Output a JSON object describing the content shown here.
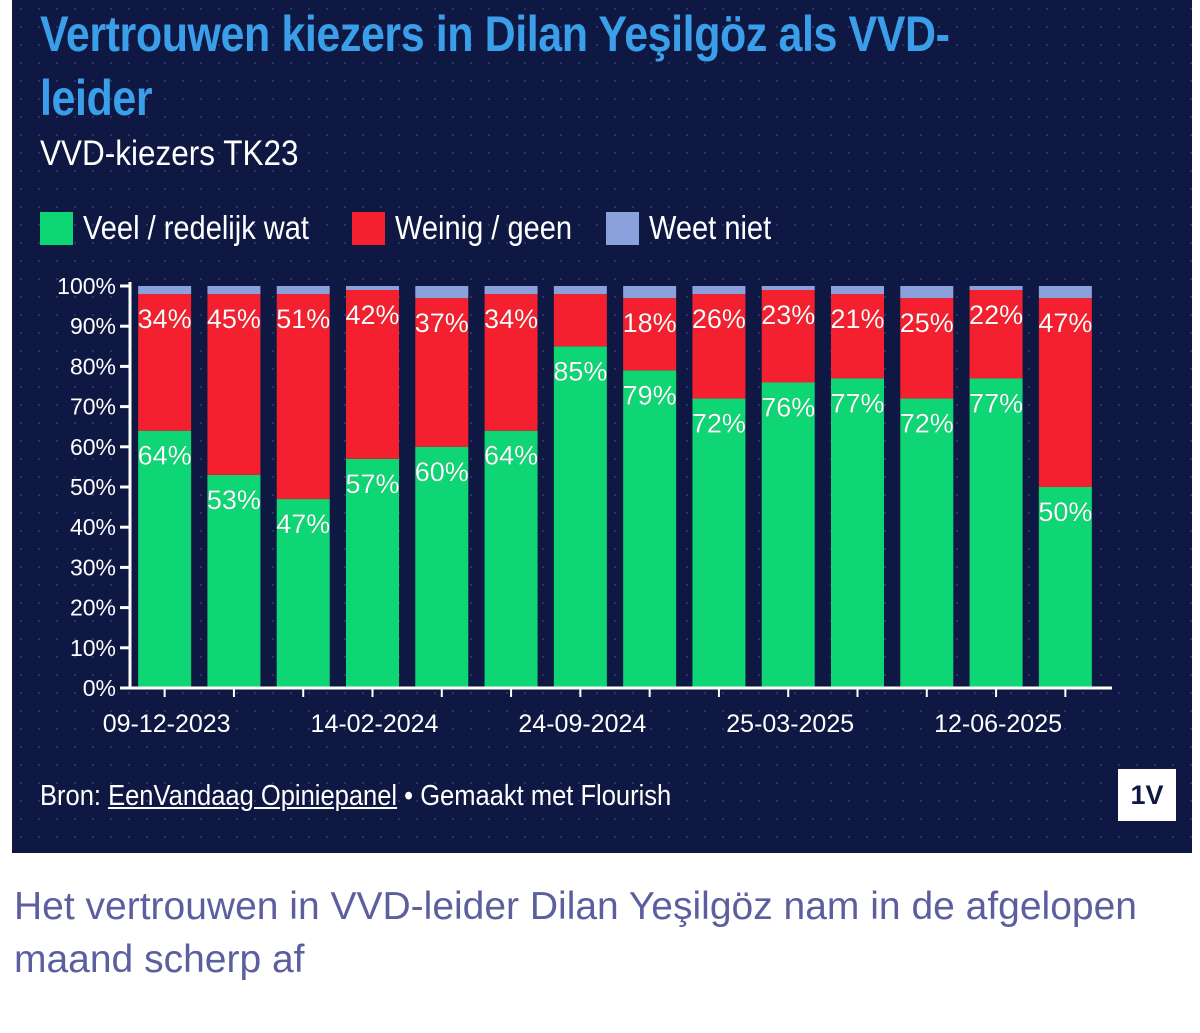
{
  "title": "Vertrouwen kiezers in Dilan Yeşilgöz als VVD-leider",
  "subtitle": "VVD-kiezers TK23",
  "legend": [
    {
      "label": "Veel / redelijk wat",
      "color": "#0fd675"
    },
    {
      "label": "Weinig / geen",
      "color": "#f5202f"
    },
    {
      "label": "Weet niet",
      "color": "#8aa1dc"
    }
  ],
  "source": {
    "prefix": "Bron: ",
    "link": "EenVandaag Opiniepanel",
    "suffix": " • Gemaakt met Flourish"
  },
  "logo": "1V",
  "caption": "Het vertrouwen in VVD-leider Dilan Yeşilgöz nam in de afgelopen maand scherp af",
  "chart_data": {
    "type": "bar",
    "stacked": true,
    "x_tick_labels": [
      "09-12-2023",
      "14-02-2024",
      "24-09-2024",
      "25-03-2025",
      "12-06-2025"
    ],
    "x_tick_label_bar_index": [
      0,
      3,
      6,
      9,
      12
    ],
    "y_ticks": [
      "0%",
      "10%",
      "20%",
      "30%",
      "40%",
      "50%",
      "60%",
      "70%",
      "80%",
      "90%",
      "100%"
    ],
    "ylim": [
      0,
      100
    ],
    "grid": false,
    "legend_position": "top-left",
    "series": [
      {
        "name": "Veel / redelijk wat",
        "color": "#0fd675",
        "values": [
          64,
          53,
          47,
          57,
          60,
          64,
          85,
          79,
          72,
          76,
          77,
          72,
          77,
          50
        ],
        "labels": [
          "64%",
          "53%",
          "47%",
          "57%",
          "60%",
          "64%",
          "85%",
          "79%",
          "72%",
          "76%",
          "77%",
          "72%",
          "77%",
          "50%"
        ]
      },
      {
        "name": "Weinig / geen",
        "color": "#f5202f",
        "values": [
          34,
          45,
          51,
          42,
          37,
          34,
          13,
          18,
          26,
          23,
          21,
          25,
          22,
          47
        ],
        "labels": [
          "34%",
          "45%",
          "51%",
          "42%",
          "37%",
          "34%",
          "",
          "18%",
          "26%",
          "23%",
          "21%",
          "25%",
          "22%",
          "47%"
        ]
      },
      {
        "name": "Weet niet",
        "color": "#8aa1dc",
        "values": [
          2,
          2,
          2,
          1,
          3,
          2,
          2,
          3,
          2,
          1,
          2,
          3,
          1,
          3
        ]
      }
    ]
  }
}
